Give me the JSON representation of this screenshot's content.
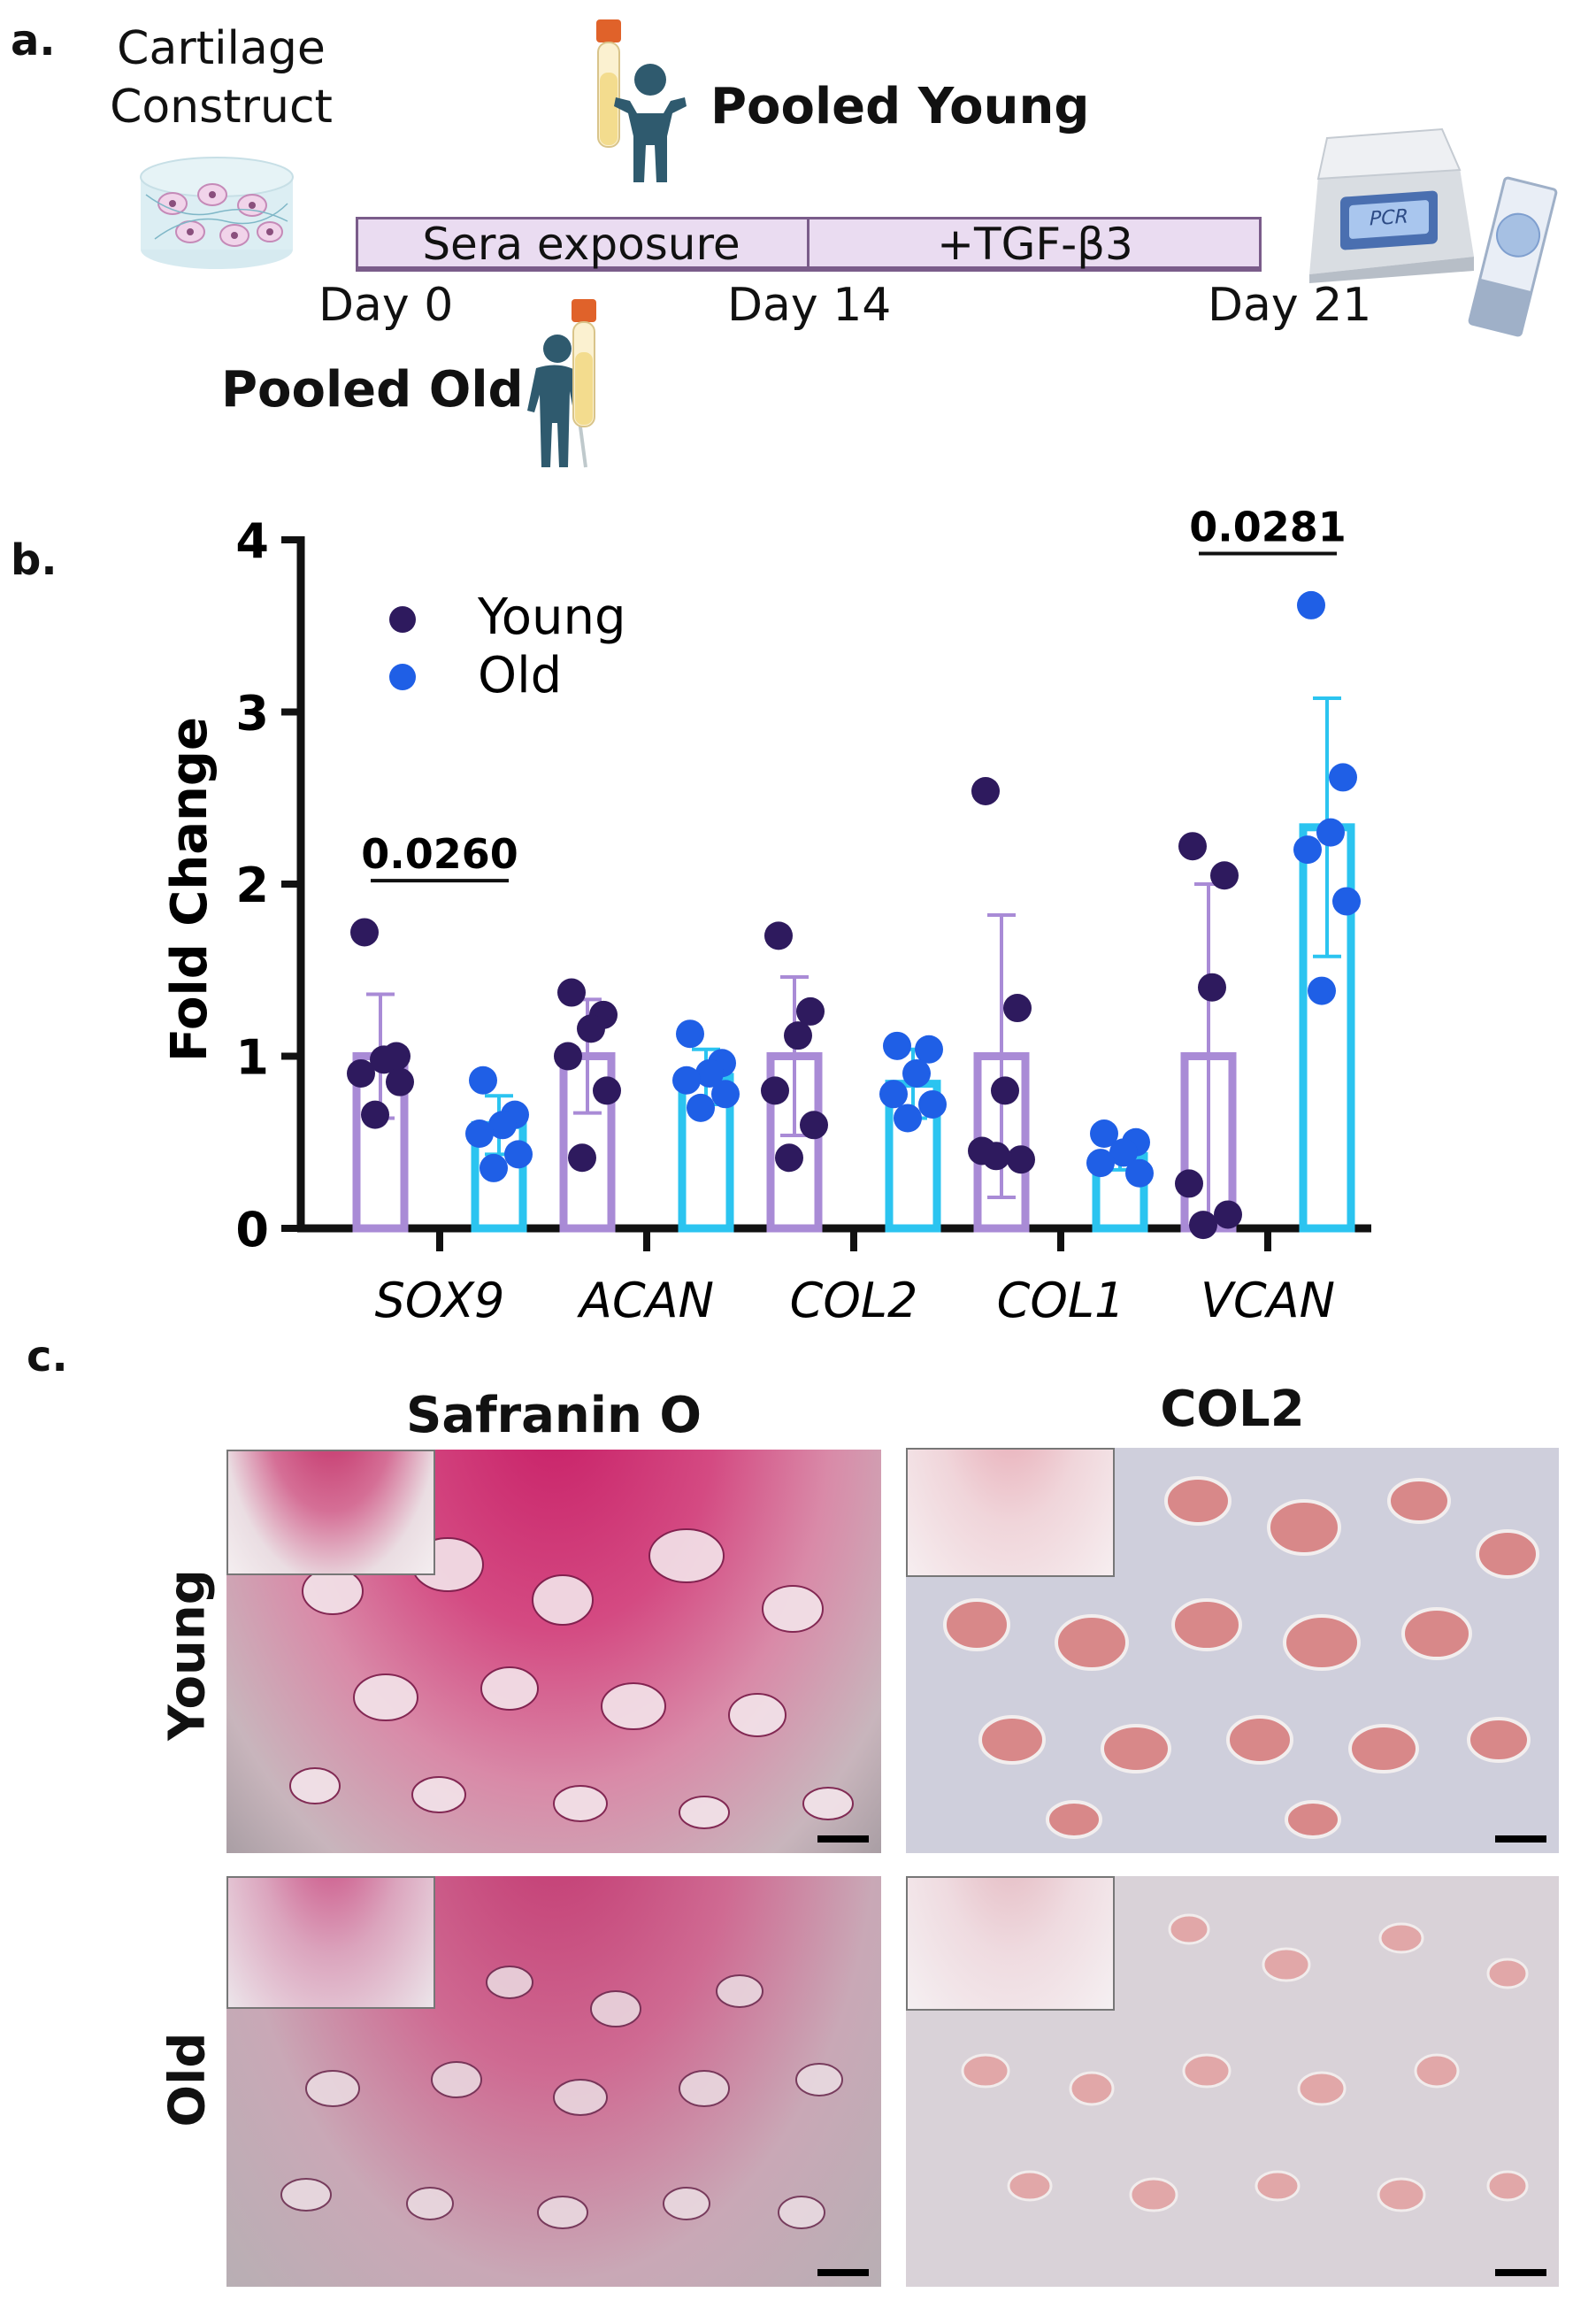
{
  "panel_a": {
    "label": "a.",
    "construct_label_line1": "Cartilage",
    "construct_label_line2": "Construct",
    "young_label": "Pooled Young",
    "old_label": "Pooled Old",
    "phase1_label": "Sera exposure",
    "phase2_label": "+TGF-β3",
    "day0": "Day 0",
    "day14": "Day 14",
    "day21": "Day 21",
    "pcr_label": "PCR",
    "colors": {
      "timeline_fill": "#eadcf1",
      "timeline_border": "#7a5c8a",
      "person": "#2f5a6e",
      "tube_cap": "#e0622a",
      "tube_body": "#f3dc8e"
    }
  },
  "panel_b": {
    "label": "b.",
    "chart_data": {
      "type": "bar",
      "ylabel": "Fold Change",
      "xlabel": "",
      "ylim": [
        0,
        4
      ],
      "yticks": [
        "0",
        "1",
        "2",
        "3",
        "4"
      ],
      "categories": [
        "SOX9",
        "ACAN",
        "COL2",
        "COL1",
        "VCAN"
      ],
      "series": [
        {
          "name": "Young",
          "color": "#2e1a5e",
          "bar_color": "#a98bd6",
          "means": [
            1.0,
            1.0,
            1.0,
            1.0,
            1.0
          ],
          "sd": [
            0.36,
            0.33,
            0.46,
            0.82,
            1.0
          ],
          "points": [
            [
              1.72,
              1.0,
              0.98,
              0.9,
              0.85,
              0.66
            ],
            [
              1.37,
              1.24,
              1.16,
              1.0,
              0.8,
              0.41
            ],
            [
              1.7,
              1.26,
              1.12,
              0.8,
              0.6,
              0.41
            ],
            [
              2.54,
              1.28,
              0.8,
              0.45,
              0.4,
              0.42
            ],
            [
              2.22,
              2.05,
              1.4,
              0.26,
              0.08,
              0.02
            ]
          ]
        },
        {
          "name": "Old",
          "color": "#1f5fe6",
          "bar_color": "#2bc4f0",
          "means": [
            0.6,
            0.88,
            0.84,
            0.42,
            2.33
          ],
          "sd": [
            0.17,
            0.16,
            0.2,
            0.08,
            0.75
          ],
          "points": [
            [
              0.86,
              0.66,
              0.6,
              0.55,
              0.43,
              0.35
            ],
            [
              1.13,
              0.96,
              0.9,
              0.86,
              0.78,
              0.7
            ],
            [
              1.06,
              1.04,
              0.9,
              0.78,
              0.72,
              0.64
            ],
            [
              0.55,
              0.5,
              0.44,
              0.38,
              0.32
            ],
            [
              3.62,
              2.62,
              2.3,
              2.2,
              1.9,
              1.38
            ]
          ]
        }
      ],
      "annotations": [
        {
          "category": "SOX9",
          "text": "0.0260"
        },
        {
          "category": "VCAN",
          "text": "0.0281"
        }
      ],
      "legend": {
        "placement": "top-left",
        "entries": [
          "Young",
          "Old"
        ]
      }
    }
  },
  "panel_c": {
    "label": "c.",
    "col1_title": "Safranin O",
    "col2_title": "COL2",
    "row1_label": "Young",
    "row2_label": "Old"
  }
}
